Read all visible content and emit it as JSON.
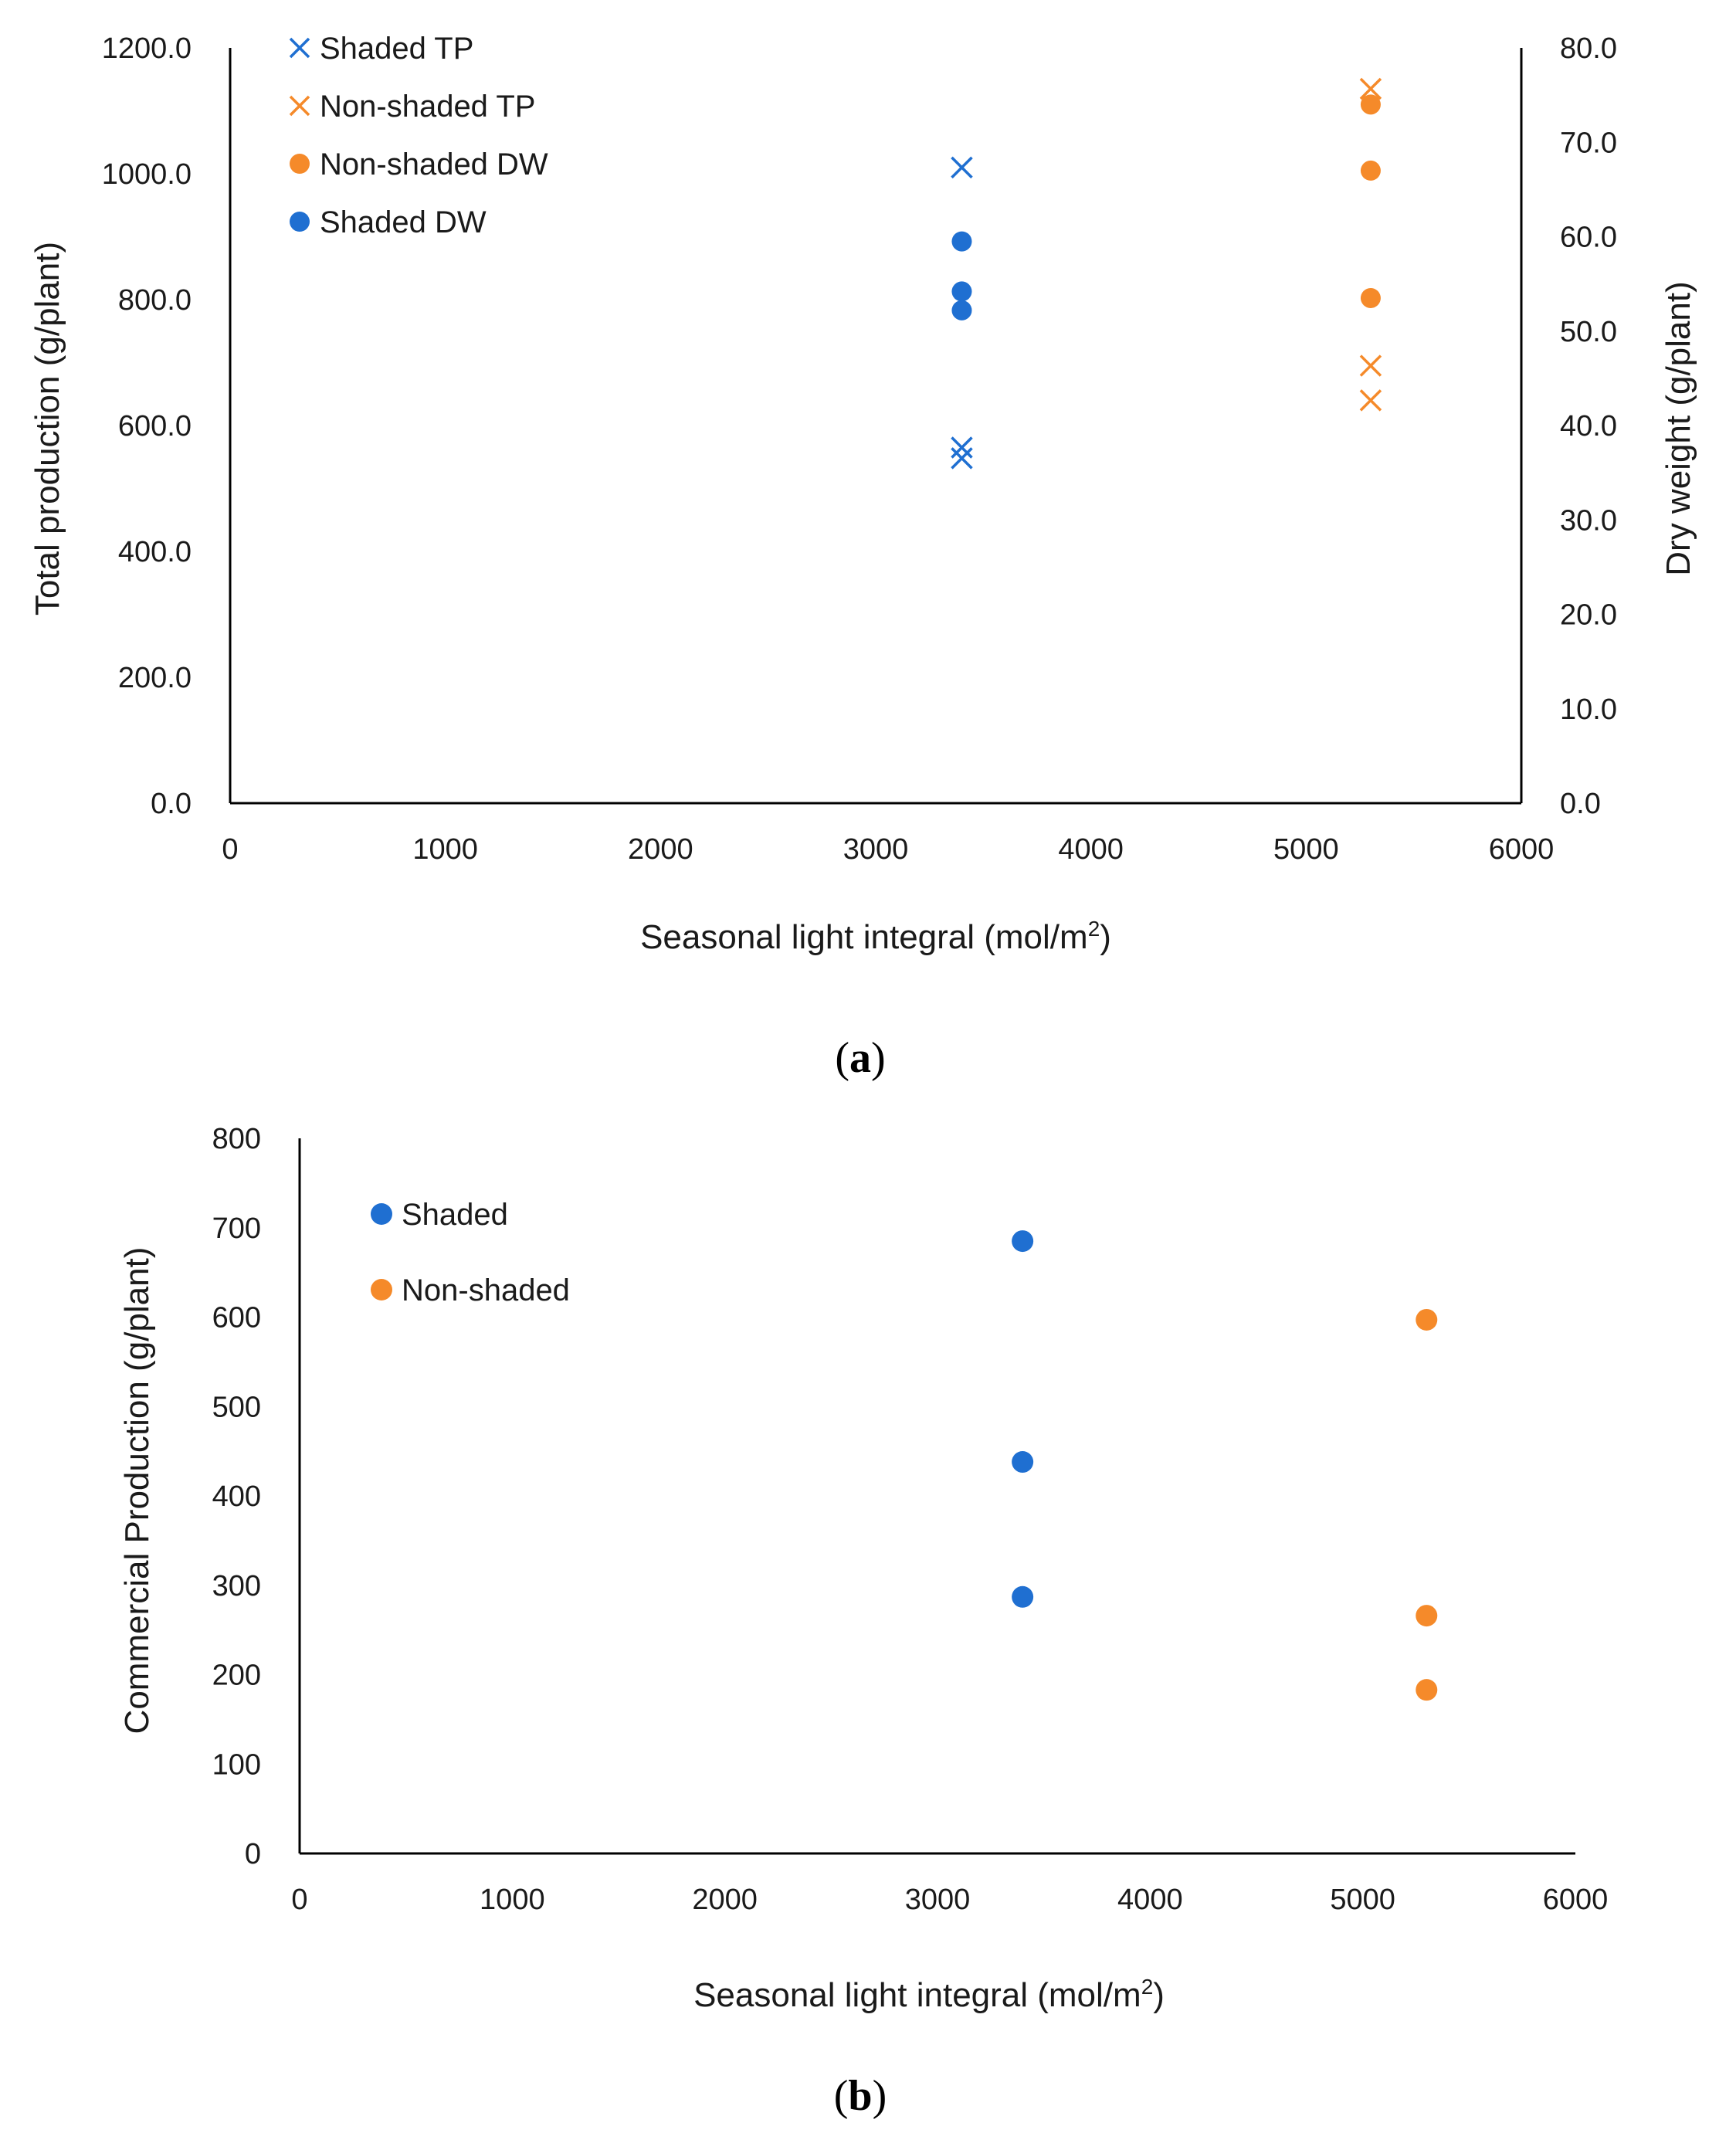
{
  "colors": {
    "shaded": "#1f6fd1",
    "nonshaded": "#f58a2a",
    "axis": "#000000",
    "text": "#1a1a1a"
  },
  "chart_data": [
    {
      "id": "a",
      "type": "scatter",
      "caption": {
        "open": "(",
        "letter": "a",
        "close": ")"
      },
      "title": "",
      "xlabel": "Seasonal light integral (mol/m",
      "xlabel_sup": "2",
      "xlabel_end": ")",
      "ylabel": "Total production (g/plant)",
      "y2label": "Dry weight (g/plant)",
      "xlim": [
        0,
        6000
      ],
      "ylim": [
        0,
        1200
      ],
      "y2lim": [
        0,
        80
      ],
      "grid": false,
      "legend_position": "top-left",
      "x_ticks": [
        "0",
        "1000",
        "2000",
        "3000",
        "4000",
        "5000",
        "6000"
      ],
      "y_ticks": [
        "0.0",
        "200.0",
        "400.0",
        "600.0",
        "800.0",
        "1000.0",
        "1200.0"
      ],
      "y2_ticks": [
        "0.0",
        "10.0",
        "20.0",
        "30.0",
        "40.0",
        "50.0",
        "60.0",
        "70.0",
        "80.0"
      ],
      "series": [
        {
          "name": "Shaded TP",
          "marker": "x",
          "color": "#1f6fd1",
          "axis": "left",
          "x": [
            3400,
            3400,
            3400
          ],
          "y": [
            1010,
            565,
            548
          ]
        },
        {
          "name": "Non-shaded TP",
          "marker": "x",
          "color": "#f58a2a",
          "axis": "left",
          "x": [
            5300,
            5300,
            5300
          ],
          "y": [
            1135,
            695,
            640
          ]
        },
        {
          "name": "Non-shaded DW",
          "marker": "circle",
          "color": "#f58a2a",
          "axis": "right",
          "x": [
            5300,
            5300,
            5300
          ],
          "y": [
            74,
            67,
            53.5
          ]
        },
        {
          "name": "Shaded DW",
          "marker": "circle",
          "color": "#1f6fd1",
          "axis": "right",
          "x": [
            3400,
            3400,
            3400
          ],
          "y": [
            59.5,
            54.2,
            52.2
          ]
        }
      ]
    },
    {
      "id": "b",
      "type": "scatter",
      "caption": {
        "open": "(",
        "letter": "b",
        "close": ")"
      },
      "title": "",
      "xlabel": "Seasonal light integral (mol/m",
      "xlabel_sup": "2",
      "xlabel_end": ")",
      "ylabel": "Commercial Production (g/plant)",
      "xlim": [
        0,
        6000
      ],
      "ylim": [
        0,
        800
      ],
      "grid": false,
      "legend_position": "top-left",
      "x_ticks": [
        "0",
        "1000",
        "2000",
        "3000",
        "4000",
        "5000",
        "6000"
      ],
      "y_ticks": [
        "0",
        "100",
        "200",
        "300",
        "400",
        "500",
        "600",
        "700",
        "800"
      ],
      "series": [
        {
          "name": "Shaded",
          "marker": "circle",
          "color": "#1f6fd1",
          "axis": "left",
          "x": [
            3400,
            3400,
            3400
          ],
          "y": [
            685,
            438,
            287
          ]
        },
        {
          "name": "Non-shaded",
          "marker": "circle",
          "color": "#f58a2a",
          "axis": "left",
          "x": [
            5300,
            5300,
            5300
          ],
          "y": [
            597,
            266,
            183
          ]
        }
      ]
    }
  ]
}
